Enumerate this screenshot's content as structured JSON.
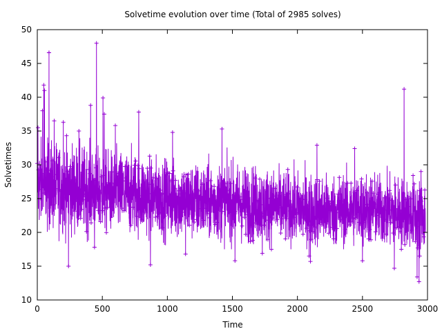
{
  "chart_data": {
    "type": "line",
    "title": "Solvetime evolution over time (Total of 2985 solves)",
    "xlabel": "Time",
    "ylabel": "Solvetimes",
    "xlim": [
      0,
      3000
    ],
    "ylim": [
      10,
      50
    ],
    "x_ticks": [
      0,
      500,
      1000,
      1500,
      2000,
      2500,
      3000
    ],
    "y_ticks": [
      10,
      15,
      20,
      25,
      30,
      35,
      40,
      45,
      50
    ],
    "x_tick_labels": [
      "0",
      "500",
      "1000",
      "1500",
      "2000",
      "2500",
      "3000"
    ],
    "y_tick_labels": [
      "10",
      "15",
      "20",
      "25",
      "30",
      "35",
      "40",
      "45",
      "50"
    ],
    "grid": false,
    "series_color": "#9400d3",
    "n_points": 2985,
    "point_marker": "plus",
    "note": "Dense noisy series; per-point values are approximated by the rolling mean/spread and the visible spikes listed below.",
    "trend": {
      "x": [
        0,
        250,
        500,
        750,
        1000,
        1250,
        1500,
        1750,
        2000,
        2250,
        2500,
        2750,
        2985
      ],
      "mean": [
        27,
        26.5,
        26,
        25.8,
        25,
        24.5,
        24.5,
        24,
        23.5,
        23.2,
        23.5,
        23,
        22.5
      ],
      "spread": [
        3.2,
        3.2,
        3.0,
        3.0,
        2.8,
        2.8,
        2.8,
        2.7,
        2.6,
        2.6,
        2.6,
        2.6,
        2.6
      ]
    },
    "highlights": [
      {
        "x": 5,
        "y": 35.5
      },
      {
        "x": 40,
        "y": 38.0
      },
      {
        "x": 50,
        "y": 41.8
      },
      {
        "x": 55,
        "y": 41.0
      },
      {
        "x": 90,
        "y": 46.6
      },
      {
        "x": 130,
        "y": 36.5
      },
      {
        "x": 200,
        "y": 36.3
      },
      {
        "x": 240,
        "y": 15.0
      },
      {
        "x": 320,
        "y": 35.0
      },
      {
        "x": 410,
        "y": 38.8
      },
      {
        "x": 440,
        "y": 17.8
      },
      {
        "x": 455,
        "y": 48.0
      },
      {
        "x": 505,
        "y": 39.9
      },
      {
        "x": 515,
        "y": 37.5
      },
      {
        "x": 600,
        "y": 35.8
      },
      {
        "x": 780,
        "y": 37.8
      },
      {
        "x": 870,
        "y": 15.2
      },
      {
        "x": 1040,
        "y": 34.8
      },
      {
        "x": 1140,
        "y": 16.8
      },
      {
        "x": 1420,
        "y": 35.3
      },
      {
        "x": 1520,
        "y": 15.8
      },
      {
        "x": 1730,
        "y": 16.9
      },
      {
        "x": 2090,
        "y": 16.5
      },
      {
        "x": 2100,
        "y": 15.7
      },
      {
        "x": 2150,
        "y": 32.9
      },
      {
        "x": 2440,
        "y": 32.4
      },
      {
        "x": 2500,
        "y": 15.8
      },
      {
        "x": 2745,
        "y": 14.7
      },
      {
        "x": 2820,
        "y": 41.2
      },
      {
        "x": 2920,
        "y": 13.4
      },
      {
        "x": 2935,
        "y": 12.7
      },
      {
        "x": 2940,
        "y": 16.5
      },
      {
        "x": 2950,
        "y": 29.0
      }
    ]
  }
}
